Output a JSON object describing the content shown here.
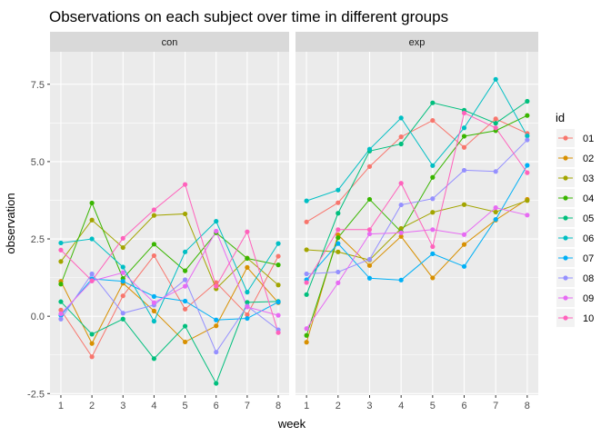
{
  "chart_data": {
    "type": "line",
    "title": "Observations on each subject over time in different groups",
    "xlabel": "week",
    "ylabel": "observation",
    "x_ticks": [
      1,
      2,
      3,
      4,
      5,
      6,
      7,
      8
    ],
    "y_ticks": [
      -2.5,
      0.0,
      2.5,
      5.0,
      7.5
    ],
    "y_tick_labels": [
      "-2.5",
      "0.0",
      "2.5",
      "5.0",
      "7.5"
    ],
    "xlim": [
      0.65,
      8.35
    ],
    "ylim": [
      -2.55,
      8.55
    ],
    "grid": true,
    "legend": {
      "title": "id",
      "placement": "right"
    },
    "id_colors": {
      "01": "#F8766D",
      "02": "#D89000",
      "03": "#A3A500",
      "04": "#39B600",
      "05": "#00BF7D",
      "06": "#00BFC4",
      "07": "#00B0F6",
      "08": "#9590FF",
      "09": "#E76BF3",
      "10": "#FF62BC"
    },
    "ids": [
      "01",
      "02",
      "03",
      "04",
      "05",
      "06",
      "07",
      "08",
      "09",
      "10"
    ],
    "facets": [
      {
        "label": "con",
        "series": [
          {
            "name": "01",
            "values": [
              0.2,
              -1.31,
              0.66,
              1.96,
              0.23,
              1.09,
              0.05,
              1.94
            ]
          },
          {
            "name": "02",
            "values": [
              1.13,
              -0.88,
              1.07,
              0.17,
              -0.83,
              -0.31,
              1.58,
              0.44
            ]
          },
          {
            "name": "03",
            "values": [
              1.77,
              3.11,
              2.22,
              3.26,
              3.31,
              0.89,
              1.88,
              1.01
            ]
          },
          {
            "name": "04",
            "values": [
              1.04,
              3.66,
              1.22,
              2.33,
              1.47,
              2.7,
              1.87,
              1.66
            ]
          },
          {
            "name": "05",
            "values": [
              0.47,
              -0.58,
              -0.09,
              -1.37,
              -0.32,
              -2.17,
              0.45,
              0.48
            ]
          },
          {
            "name": "06",
            "values": [
              2.37,
              2.5,
              1.59,
              -0.16,
              2.08,
              3.07,
              0.78,
              2.35
            ]
          },
          {
            "name": "07",
            "values": [
              0.03,
              1.21,
              1.13,
              0.64,
              0.49,
              -0.12,
              -0.07,
              0.46
            ]
          },
          {
            "name": "08",
            "values": [
              -0.09,
              1.37,
              0.1,
              0.36,
              1.18,
              -1.16,
              0.33,
              -0.44
            ]
          },
          {
            "name": "09",
            "values": [
              0.08,
              1.14,
              1.41,
              0.44,
              0.97,
              2.75,
              0.3,
              0.03
            ]
          },
          {
            "name": "10",
            "values": [
              2.14,
              1.15,
              2.52,
              3.44,
              4.26,
              0.97,
              2.73,
              -0.53
            ]
          }
        ]
      },
      {
        "label": "exp",
        "series": [
          {
            "name": "01",
            "values": [
              3.05,
              3.67,
              4.84,
              5.8,
              6.33,
              5.46,
              6.38,
              5.91
            ]
          },
          {
            "name": "02",
            "values": [
              -0.84,
              2.63,
              1.64,
              2.58,
              1.24,
              2.32,
              3.11,
              3.78
            ]
          },
          {
            "name": "03",
            "values": [
              2.15,
              2.08,
              1.82,
              2.84,
              3.36,
              3.61,
              3.37,
              3.74
            ]
          },
          {
            "name": "04",
            "values": [
              -0.62,
              2.54,
              3.78,
              2.73,
              4.49,
              5.82,
              6.0,
              6.49
            ]
          },
          {
            "name": "05",
            "values": [
              0.7,
              3.33,
              5.34,
              5.57,
              6.9,
              6.66,
              6.24,
              6.95
            ]
          },
          {
            "name": "06",
            "values": [
              3.73,
              4.08,
              5.4,
              6.41,
              4.87,
              6.09,
              7.66,
              5.83
            ]
          },
          {
            "name": "07",
            "values": [
              1.18,
              2.35,
              1.23,
              1.17,
              2.02,
              1.61,
              3.13,
              4.88
            ]
          },
          {
            "name": "08",
            "values": [
              1.37,
              1.43,
              1.84,
              3.6,
              3.8,
              4.72,
              4.68,
              5.7
            ]
          },
          {
            "name": "09",
            "values": [
              -0.4,
              1.08,
              2.66,
              2.7,
              2.8,
              2.64,
              3.51,
              3.27
            ]
          },
          {
            "name": "10",
            "values": [
              1.09,
              2.8,
              2.8,
              4.3,
              2.25,
              6.57,
              6.09,
              4.64
            ]
          }
        ]
      }
    ]
  }
}
